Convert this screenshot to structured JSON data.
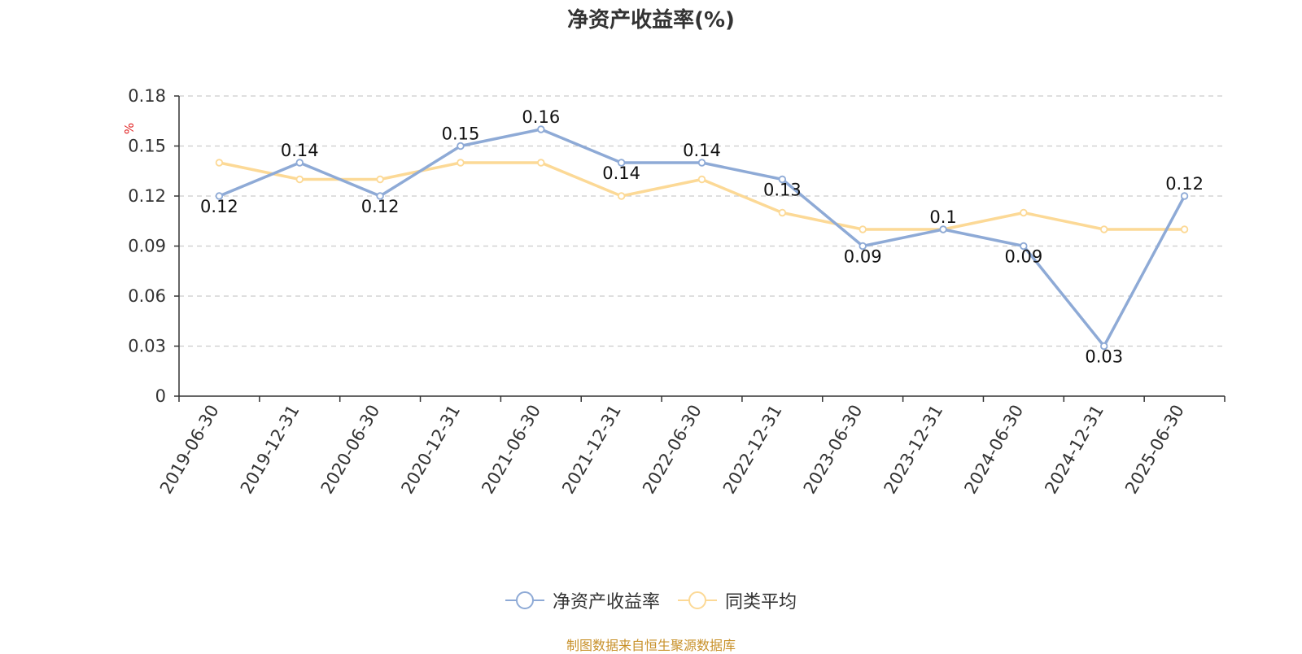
{
  "chart_data": {
    "type": "line",
    "title": "净资产收益率(%)",
    "ylabel": "%",
    "categories": [
      "2019-06-30",
      "2019-12-31",
      "2020-06-30",
      "2020-12-31",
      "2021-06-30",
      "2021-12-31",
      "2022-06-30",
      "2022-12-31",
      "2023-06-30",
      "2023-12-31",
      "2024-06-30",
      "2024-12-31",
      "2025-06-30"
    ],
    "ylim": [
      0,
      0.18
    ],
    "yticks": [
      "0",
      "0.03",
      "0.06",
      "0.09",
      "0.12",
      "0.15",
      "0.18"
    ],
    "grid": true,
    "legend_position": "bottom",
    "series": [
      {
        "name": "净资产收益率",
        "color": "#8eaad6",
        "show_labels": true,
        "values": [
          0.12,
          0.14,
          0.12,
          0.15,
          0.16,
          0.14,
          0.14,
          0.13,
          0.09,
          0.1,
          0.09,
          0.03,
          0.12
        ],
        "labels": [
          "0.12",
          "0.14",
          "0.12",
          "0.15",
          "0.16",
          "0.14",
          "0.14",
          "0.13",
          "0.09",
          "0.1",
          "0.09",
          "0.03",
          "0.12"
        ]
      },
      {
        "name": "同类平均",
        "color": "#fcd996",
        "show_labels": false,
        "values": [
          0.14,
          0.13,
          0.13,
          0.14,
          0.14,
          0.12,
          0.13,
          0.11,
          0.1,
          0.1,
          0.11,
          0.1,
          0.1
        ]
      }
    ]
  },
  "source_note": "制图数据来自恒生聚源数据库"
}
